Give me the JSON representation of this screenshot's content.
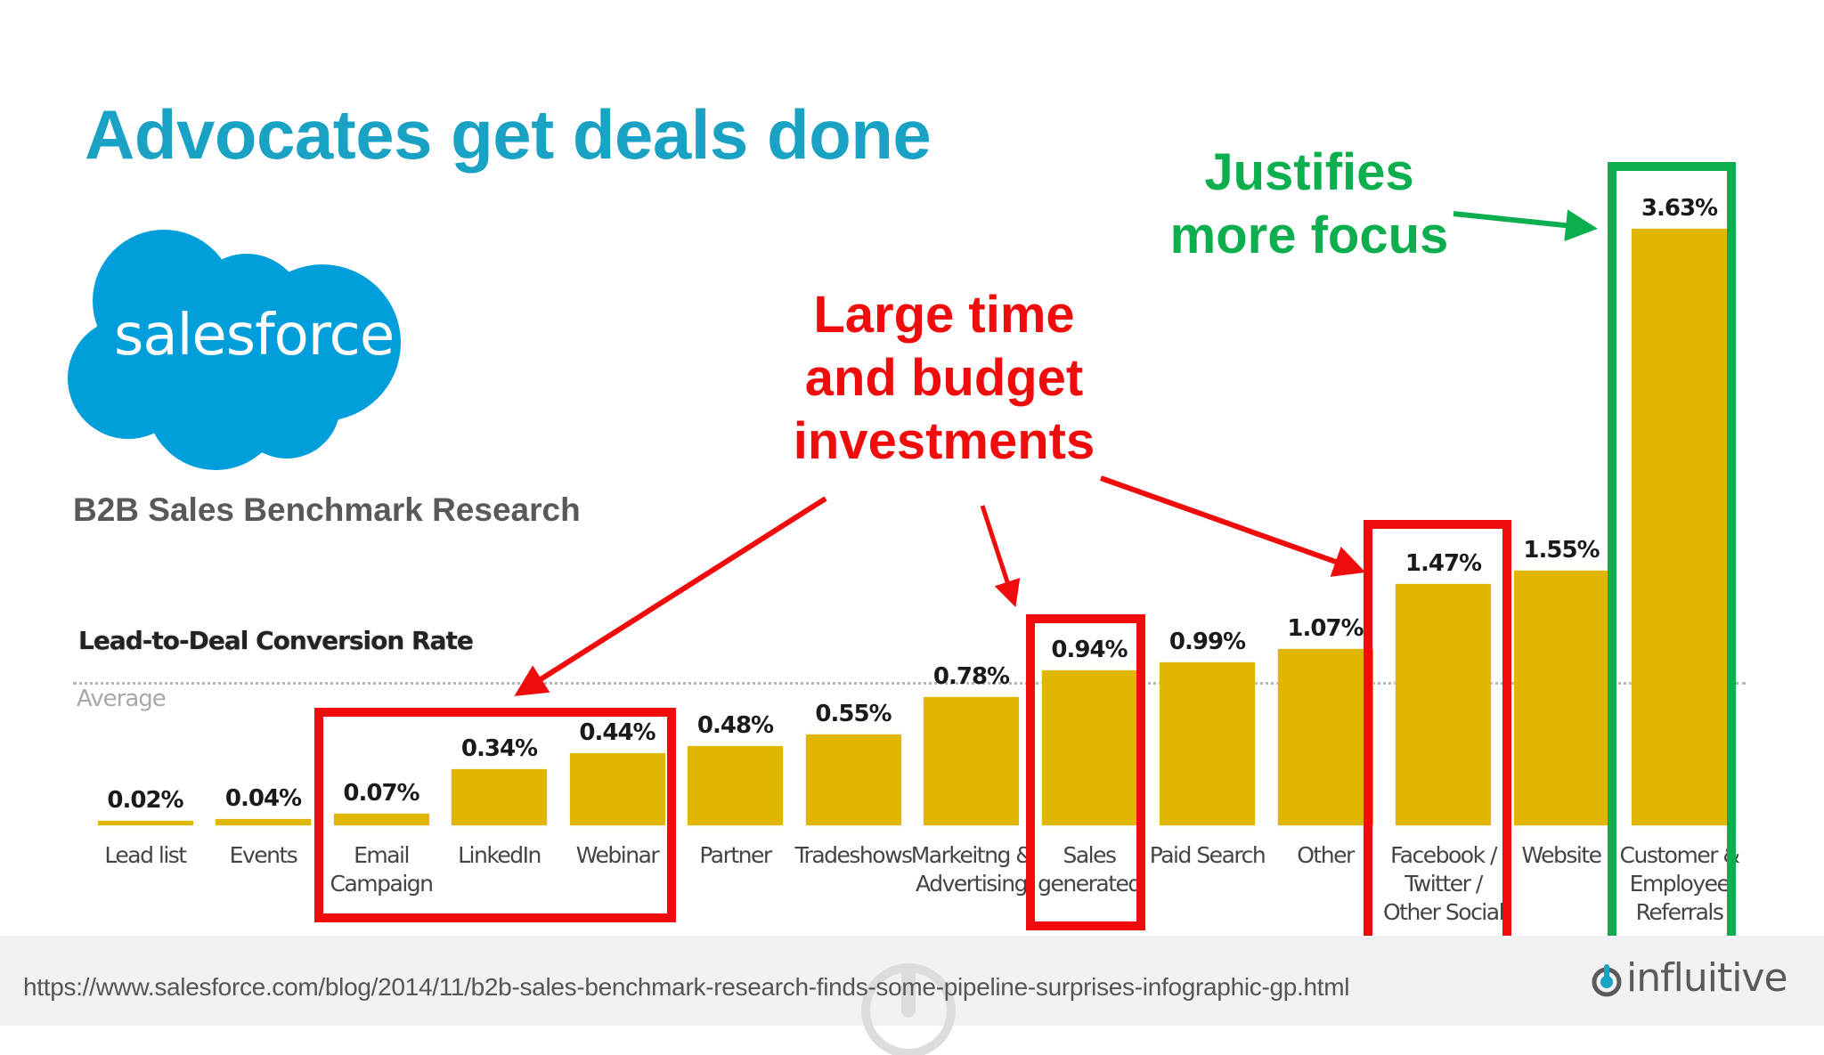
{
  "slide": {
    "title": "Advocates get deals done",
    "logo_text": "salesforce",
    "subtitle": "B2B Sales Benchmark Research",
    "source_url": "https://www.salesforce.com/blog/2014/11/b2b-sales-benchmark-research-finds-some-pipeline-surprises-infographic-gp.html",
    "footer_brand": "influitive",
    "colors": {
      "title": "#1aa2c4",
      "salesforce_cloud": "#009edb",
      "bar": "#e0b600",
      "annotation_red": "#f00c0c",
      "annotation_green": "#0cae4e",
      "subtitle": "#58595b",
      "footer_bg": "#f2f2f4",
      "influitive_dot": "#1aa2c4"
    }
  },
  "annotations": {
    "red_callout": "Large time\nand budget\ninvestments",
    "green_callout": "Justifies\nmore focus"
  },
  "chart_data": {
    "type": "bar",
    "title": "Lead-to-Deal Conversion Rate",
    "reference_line_label": "Average",
    "categories": [
      "Lead list",
      "Events",
      "Email\nCampaign",
      "LinkedIn",
      "Webinar",
      "Partner",
      "Tradeshows",
      "Markeitng &\nAdvertising",
      "Sales\ngenerated",
      "Paid Search",
      "Other",
      "Facebook /\nTwitter /\nOther Social",
      "Website",
      "Customer &\nEmployee\nReferrals"
    ],
    "values": [
      0.02,
      0.04,
      0.07,
      0.34,
      0.44,
      0.48,
      0.55,
      0.78,
      0.94,
      0.99,
      1.07,
      1.47,
      1.55,
      3.63
    ],
    "value_labels": [
      "0.02%",
      "0.04%",
      "0.07%",
      "0.34%",
      "0.44%",
      "0.48%",
      "0.55%",
      "0.78%",
      "0.94%",
      "0.99%",
      "1.07%",
      "1.47%",
      "1.55%",
      "3.63%"
    ],
    "unit": "%",
    "average_approx": 0.87,
    "xlabel": "",
    "ylabel": "",
    "ylim": [
      0,
      3.63
    ],
    "grid": false,
    "legend": null,
    "highlighted_red": [
      "Email\nCampaign",
      "LinkedIn",
      "Webinar",
      "Sales\ngenerated",
      "Facebook /\nTwitter /\nOther Social"
    ],
    "highlighted_green": [
      "Customer &\nEmployee\nReferrals"
    ]
  }
}
